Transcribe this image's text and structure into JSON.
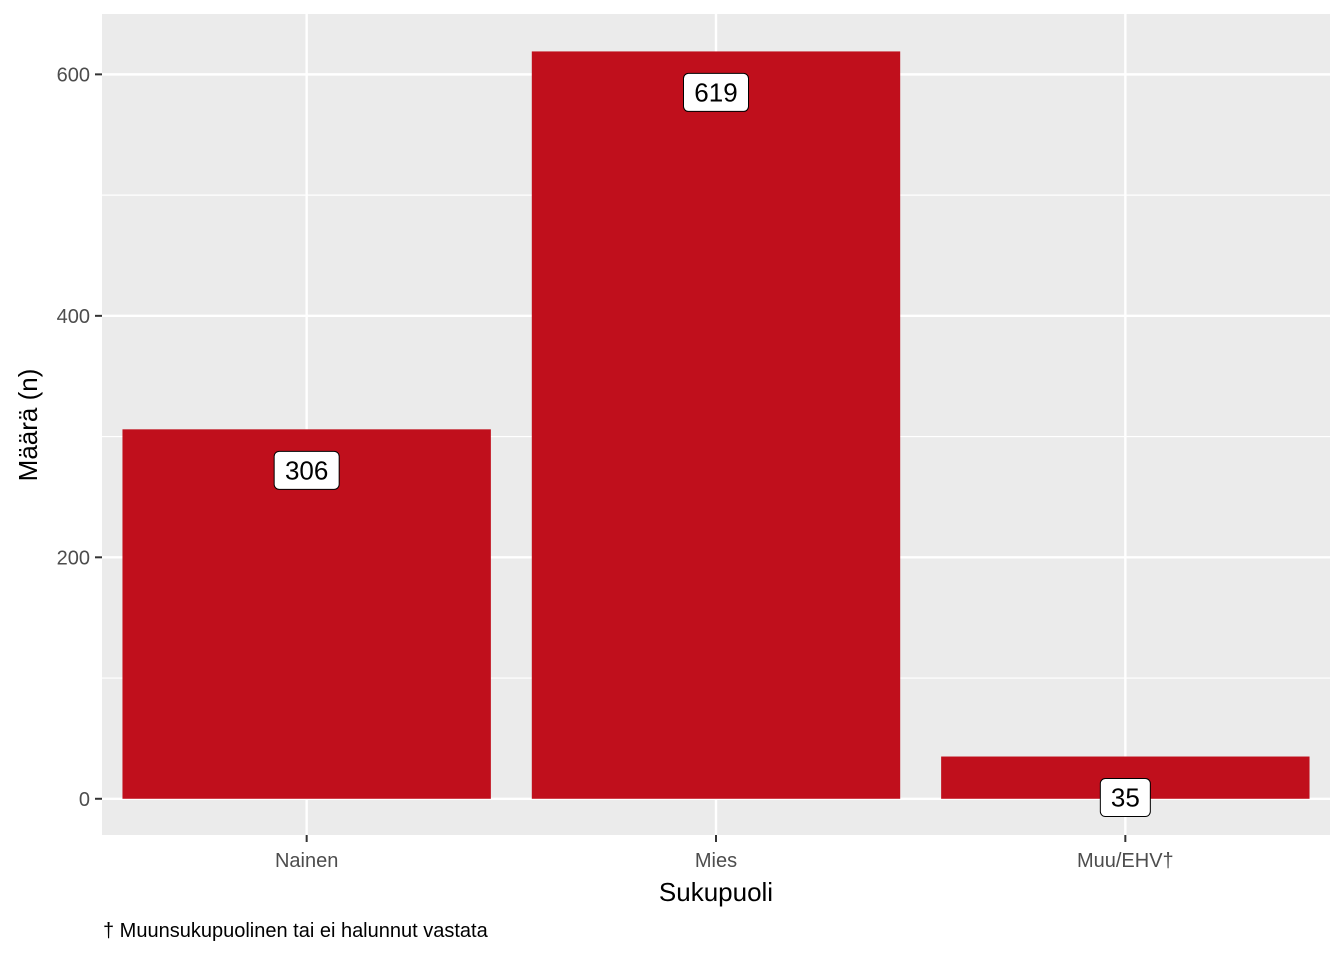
{
  "chart_data": {
    "type": "bar",
    "title": "",
    "xlabel": "Sukupuoli",
    "ylabel": "Määrä (n)",
    "categories": [
      "Nainen",
      "Mies",
      "Muu/EHV†"
    ],
    "values": [
      306,
      619,
      35
    ],
    "data_labels": [
      "306",
      "619",
      "35"
    ],
    "ylim": [
      -30,
      650
    ],
    "yticks": [
      0,
      200,
      400,
      600
    ],
    "ytick_labels": [
      "0",
      "200",
      "400",
      "600"
    ],
    "grid": true,
    "legend": "none",
    "colors": {
      "bar": "#c00f1c",
      "panel": "#ebebeb",
      "grid": "#ffffff"
    },
    "caption": "† Muunsukupuolinen tai ei halunnut vastata"
  }
}
